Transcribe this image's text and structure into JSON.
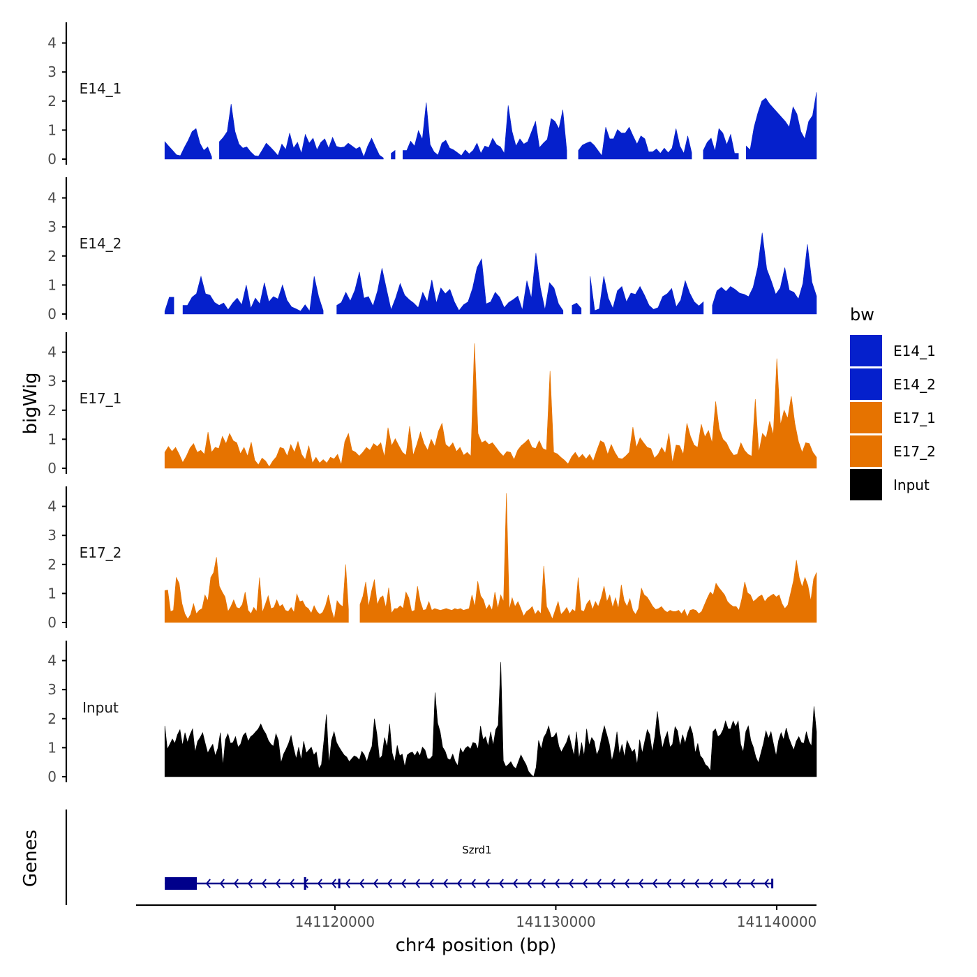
{
  "chart_data": {
    "type": "area",
    "chromosome": "chr4",
    "xlabel": "chr4 position (bp)",
    "ylabel": "bigWig",
    "xlim": [
      141111000,
      141141800
    ],
    "xticks": [
      141120000,
      141130000,
      141140000
    ],
    "xtick_labels": [
      "141120000",
      "141130000",
      "141140000"
    ],
    "ylim": [
      0,
      4.6
    ],
    "yticks": [
      0,
      1,
      2,
      3,
      4
    ],
    "ytick_labels": [
      "0",
      "1",
      "2",
      "3",
      "4"
    ],
    "legend": {
      "title": "bw",
      "position": "right",
      "entries": [
        {
          "label": "E14_1",
          "color": "#0520CC"
        },
        {
          "label": "E14_2",
          "color": "#0520CC"
        },
        {
          "label": "E17_1",
          "color": "#E67300"
        },
        {
          "label": "E17_2",
          "color": "#E67300"
        },
        {
          "label": "Input",
          "color": "#000000"
        }
      ]
    },
    "genes_track_label": "Genes",
    "genes": [
      {
        "name": "Szrd1",
        "strand": "-",
        "start": 141112300,
        "end": 141139800,
        "color": "#00008B",
        "exons": [
          [
            141112300,
            141113750
          ],
          [
            141118600,
            141118700
          ],
          [
            141120150,
            141120200
          ],
          [
            141139750,
            141139800
          ]
        ],
        "thick_exons": [
          [
            141112300,
            141113750
          ],
          [
            141118600,
            141118700
          ]
        ]
      }
    ],
    "series": [
      {
        "name": "E14_1",
        "color": "#0520CC",
        "x_start": 141112300,
        "x_end": 141141800,
        "values": [
          0.6,
          0.45,
          0.3,
          0.15,
          0.12,
          0.4,
          0.65,
          0.95,
          1.05,
          0.55,
          0.3,
          0.42,
          0.08,
          null,
          0.6,
          0.75,
          0.95,
          1.9,
          0.95,
          0.52,
          0.38,
          0.42,
          0.25,
          0.12,
          0.1,
          0.32,
          0.55,
          0.42,
          0.28,
          0.12,
          0.52,
          0.33,
          0.9,
          0.38,
          0.58,
          0.2,
          0.85,
          0.55,
          0.72,
          0.32,
          0.58,
          0.7,
          0.38,
          0.75,
          0.44,
          0.4,
          0.42,
          0.55,
          0.45,
          0.35,
          0.42,
          0.08,
          0.45,
          0.72,
          0.42,
          0.14,
          0.04,
          null,
          0.2,
          0.3,
          null,
          0.3,
          0.3,
          0.62,
          0.45,
          0.98,
          0.68,
          1.95,
          0.5,
          0.25,
          0.14,
          0.55,
          0.65,
          0.38,
          0.32,
          0.22,
          0.12,
          0.32,
          0.18,
          0.3,
          0.55,
          0.2,
          0.45,
          0.4,
          0.72,
          0.5,
          0.42,
          0.2,
          1.85,
          0.95,
          0.45,
          0.7,
          0.52,
          0.6,
          0.95,
          1.3,
          0.4,
          0.55,
          0.68,
          1.4,
          1.3,
          1.05,
          1.7,
          0.3,
          null,
          null,
          0.3,
          0.48,
          0.55,
          0.6,
          0.48,
          0.3,
          0.12,
          1.1,
          0.7,
          0.7,
          1.02,
          0.9,
          0.9,
          1.1,
          0.8,
          0.52,
          0.8,
          0.7,
          0.25,
          0.25,
          0.35,
          0.2,
          0.38,
          0.22,
          0.38,
          1.05,
          0.45,
          0.2,
          0.8,
          0.22,
          null,
          null,
          0.3,
          0.58,
          0.72,
          0.28,
          1.05,
          0.9,
          0.5,
          0.85,
          0.2,
          0.2,
          null,
          0.45,
          0.32,
          1.1,
          1.6,
          2.0,
          2.1,
          1.9,
          1.75,
          1.6,
          1.45,
          1.3,
          1.1,
          1.8,
          1.55,
          0.95,
          0.7,
          1.3,
          1.5,
          2.3
        ]
      },
      {
        "name": "E14_2",
        "color": "#0520CC",
        "x_start": 141112300,
        "x_end": 141141800,
        "values": [
          0.1,
          0.58,
          0.58,
          null,
          0.3,
          0.3,
          0.58,
          0.7,
          1.3,
          0.7,
          0.65,
          0.4,
          0.3,
          0.38,
          0.15,
          0.38,
          0.55,
          0.32,
          1.0,
          0.2,
          0.55,
          0.35,
          1.08,
          0.42,
          0.6,
          0.52,
          1.0,
          0.48,
          0.25,
          0.18,
          0.1,
          0.32,
          0.1,
          1.3,
          0.6,
          0.12,
          null,
          null,
          0.3,
          0.4,
          0.75,
          0.45,
          0.82,
          1.45,
          0.55,
          0.6,
          0.28,
          0.8,
          1.58,
          0.85,
          0.15,
          0.55,
          1.05,
          0.65,
          0.5,
          0.38,
          0.22,
          0.75,
          0.42,
          1.18,
          0.38,
          0.9,
          0.7,
          0.85,
          0.42,
          0.12,
          0.32,
          0.42,
          0.88,
          1.6,
          1.9,
          0.35,
          0.42,
          0.75,
          0.58,
          0.22,
          0.4,
          0.5,
          0.62,
          0.14,
          1.15,
          0.55,
          2.1,
          0.9,
          0.15,
          1.08,
          0.9,
          0.35,
          0.12,
          null,
          0.3,
          0.38,
          0.2,
          null,
          1.3,
          0.12,
          0.18,
          1.3,
          0.55,
          0.2,
          0.8,
          0.95,
          0.42,
          0.72,
          0.68,
          0.95,
          0.65,
          0.3,
          0.16,
          0.22,
          0.6,
          0.7,
          0.88,
          0.25,
          0.48,
          1.15,
          0.72,
          0.42,
          0.28,
          0.42,
          null,
          0.3,
          0.8,
          0.92,
          0.78,
          0.95,
          0.85,
          0.72,
          0.68,
          0.6,
          0.92,
          1.6,
          2.8,
          1.55,
          1.15,
          0.68,
          0.9,
          1.6,
          0.82,
          0.75,
          0.52,
          1.05,
          2.4,
          1.1,
          0.62
        ]
      },
      {
        "name": "E17_1",
        "color": "#E67300",
        "x_start": 141112300,
        "x_end": 141141800,
        "values": [
          0.55,
          0.75,
          0.58,
          0.72,
          0.48,
          0.2,
          0.42,
          0.7,
          0.85,
          0.55,
          0.62,
          0.48,
          1.25,
          0.55,
          0.72,
          0.68,
          1.1,
          0.85,
          1.2,
          0.95,
          0.88,
          0.5,
          0.72,
          0.42,
          0.9,
          0.28,
          0.12,
          0.35,
          0.25,
          0.05,
          0.25,
          0.4,
          0.72,
          0.68,
          0.42,
          0.82,
          0.55,
          0.92,
          0.48,
          0.3,
          0.78,
          0.18,
          0.38,
          0.18,
          0.3,
          0.18,
          0.38,
          0.32,
          0.48,
          0.12,
          0.92,
          1.2,
          0.62,
          0.55,
          0.42,
          0.55,
          0.72,
          0.62,
          0.85,
          0.75,
          0.88,
          0.4,
          1.4,
          0.78,
          1.02,
          0.78,
          0.55,
          0.45,
          1.45,
          0.45,
          0.82,
          1.25,
          0.85,
          0.62,
          1.0,
          0.75,
          1.28,
          1.55,
          0.82,
          0.72,
          0.88,
          0.58,
          0.72,
          0.45,
          0.55,
          0.42,
          4.3,
          1.2,
          0.88,
          0.95,
          0.82,
          0.88,
          0.72,
          0.55,
          0.42,
          0.58,
          0.55,
          0.3,
          0.62,
          0.78,
          0.88,
          1.0,
          0.72,
          0.68,
          0.95,
          0.68,
          0.62,
          3.35,
          0.55,
          0.5,
          0.38,
          0.28,
          0.15,
          0.4,
          0.55,
          0.35,
          0.48,
          0.32,
          0.48,
          0.25,
          0.62,
          0.95,
          0.88,
          0.48,
          0.82,
          0.55,
          0.35,
          0.32,
          0.42,
          0.55,
          1.42,
          0.72,
          1.05,
          0.88,
          0.72,
          0.68,
          0.35,
          0.48,
          0.72,
          0.52,
          1.2,
          0.2,
          0.8,
          0.78,
          0.48,
          1.55,
          1.1,
          0.8,
          0.72,
          1.52,
          1.08,
          1.3,
          0.88,
          2.3,
          1.35,
          1.0,
          0.88,
          0.62,
          0.45,
          0.48,
          0.88,
          0.62,
          0.48,
          0.42,
          2.38,
          0.55,
          1.2,
          1.05,
          1.62,
          1.15,
          3.78,
          1.5,
          2.0,
          1.72,
          2.48,
          1.55,
          0.92,
          0.55,
          0.88,
          0.85,
          0.55,
          0.38
        ]
      },
      {
        "name": "E17_2",
        "color": "#E67300",
        "x_start": 141112300,
        "x_end": 141141800,
        "values": [
          1.1,
          1.12,
          0.38,
          0.42,
          1.55,
          1.35,
          0.65,
          0.3,
          0.12,
          0.28,
          0.65,
          0.3,
          0.42,
          0.48,
          0.95,
          0.75,
          1.55,
          1.72,
          2.25,
          1.25,
          1.05,
          0.88,
          0.38,
          0.55,
          0.78,
          0.52,
          0.48,
          0.62,
          1.05,
          0.42,
          0.3,
          0.52,
          0.38,
          1.55,
          0.35,
          0.62,
          0.92,
          0.48,
          0.52,
          0.78,
          0.55,
          0.62,
          0.42,
          0.38,
          0.52,
          0.35,
          0.98,
          0.72,
          0.75,
          0.55,
          0.48,
          0.32,
          0.58,
          0.38,
          0.28,
          0.35,
          0.58,
          0.95,
          0.45,
          0.12,
          0.75,
          0.62,
          0.55,
          2.0,
          0.45,
          null,
          null,
          null,
          0.62,
          0.9,
          1.4,
          0.55,
          1.08,
          1.48,
          0.62,
          0.85,
          0.92,
          0.52,
          1.2,
          0.32,
          0.48,
          0.48,
          0.58,
          0.48,
          1.05,
          0.85,
          0.38,
          0.42,
          1.25,
          0.72,
          0.42,
          0.45,
          0.72,
          0.42,
          0.48,
          0.45,
          0.42,
          0.45,
          0.48,
          0.45,
          0.42,
          0.48,
          0.45,
          0.48,
          0.42,
          0.45,
          0.48,
          0.95,
          0.55,
          1.42,
          0.92,
          0.78,
          0.45,
          0.62,
          0.42,
          1.05,
          0.48,
          0.95,
          0.72,
          4.45,
          0.45,
          0.85,
          0.55,
          0.72,
          0.48,
          0.22,
          0.38,
          0.45,
          0.55,
          0.28,
          0.42,
          0.3,
          1.95,
          0.55,
          0.35,
          0.12,
          0.42,
          0.72,
          0.28,
          0.38,
          0.52,
          0.3,
          0.45,
          0.38,
          1.55,
          0.42,
          0.38,
          0.65,
          0.78,
          0.45,
          0.72,
          0.55,
          0.85,
          1.25,
          0.72,
          0.95,
          0.52,
          0.85,
          0.48,
          1.3,
          0.75,
          0.55,
          0.82,
          0.42,
          0.28,
          0.48,
          1.18,
          0.95,
          0.88,
          0.72,
          0.55,
          0.45,
          0.48,
          0.55,
          0.42,
          0.35,
          0.42,
          0.38,
          0.38,
          0.42,
          0.3,
          0.45,
          0.2,
          0.42,
          0.45,
          0.42,
          0.3,
          0.38,
          0.62,
          0.85,
          1.05,
          0.95,
          1.35,
          1.2,
          1.08,
          0.95,
          0.72,
          0.62,
          0.55,
          0.55,
          0.42,
          0.82,
          1.4,
          1.02,
          0.95,
          0.72,
          0.8,
          0.9,
          0.95,
          0.72,
          0.85,
          0.92,
          0.98,
          0.88,
          0.95,
          0.65,
          0.48,
          0.6,
          1.02,
          1.45,
          2.15,
          1.55,
          1.22,
          1.55,
          1.28,
          0.75,
          1.5,
          1.72
        ]
      },
      {
        "name": "Input",
        "color": "#000000",
        "x_start": 141112300,
        "x_end": 141141800,
        "values": [
          1.75,
          0.95,
          1.12,
          1.3,
          1.15,
          1.45,
          1.62,
          1.08,
          1.52,
          1.18,
          1.45,
          1.65,
          0.85,
          1.22,
          1.35,
          1.52,
          1.15,
          0.82,
          0.98,
          1.12,
          0.72,
          0.98,
          1.52,
          0.38,
          1.28,
          1.48,
          1.15,
          1.18,
          1.38,
          1.02,
          1.12,
          1.42,
          1.52,
          1.22,
          1.38,
          1.45,
          1.55,
          1.65,
          1.82,
          1.62,
          1.48,
          1.25,
          1.12,
          1.05,
          1.48,
          1.25,
          0.48,
          0.78,
          0.95,
          1.15,
          1.42,
          0.98,
          0.62,
          1.02,
          0.58,
          1.22,
          0.82,
          0.92,
          1.02,
          0.75,
          0.85,
          0.28,
          0.42,
          1.25,
          2.15,
          0.45,
          1.25,
          1.55,
          1.18,
          1.02,
          0.88,
          0.75,
          0.68,
          0.52,
          0.62,
          0.72,
          0.68,
          0.58,
          0.88,
          0.75,
          0.52,
          0.82,
          1.05,
          2.0,
          1.45,
          0.62,
          0.72,
          1.35,
          1.02,
          1.82,
          0.82,
          0.52,
          1.08,
          0.72,
          0.78,
          0.35,
          0.75,
          0.82,
          0.85,
          0.72,
          0.88,
          0.72,
          1.02,
          0.92,
          0.62,
          0.62,
          0.72,
          2.9,
          1.85,
          1.55,
          1.02,
          0.88,
          0.62,
          0.58,
          0.78,
          0.52,
          0.38,
          0.98,
          0.82,
          0.98,
          1.05,
          0.95,
          1.18,
          1.15,
          0.95,
          1.75,
          1.28,
          1.38,
          1.05,
          1.55,
          1.08,
          1.62,
          1.78,
          3.95,
          0.55,
          0.35,
          0.42,
          0.52,
          0.35,
          0.28,
          0.52,
          0.75,
          0.58,
          0.42,
          0.18,
          0.08,
          0.0,
          0.32,
          1.25,
          0.95,
          1.35,
          1.5,
          1.75,
          1.35,
          1.38,
          1.52,
          1.05,
          0.85,
          1.02,
          1.18,
          1.45,
          1.08,
          0.72,
          1.55,
          0.62,
          1.18,
          0.72,
          1.65,
          1.08,
          1.35,
          1.22,
          0.75,
          0.95,
          1.38,
          1.75,
          1.45,
          1.12,
          0.55,
          0.92,
          1.55,
          0.78,
          1.12,
          0.68,
          1.25,
          1.05,
          0.85,
          0.95,
          0.42,
          1.28,
          0.82,
          1.22,
          1.62,
          1.45,
          0.85,
          1.38,
          2.25,
          1.52,
          0.98,
          1.32,
          1.55,
          1.02,
          1.12,
          1.72,
          1.58,
          1.05,
          1.45,
          1.15,
          1.52,
          1.75,
          1.48,
          0.82,
          1.15,
          0.72,
          0.62,
          0.42,
          0.35,
          0.2,
          1.55,
          1.65,
          1.38,
          1.45,
          1.62,
          1.92,
          1.65,
          1.65,
          1.92,
          1.72,
          1.92,
          1.12,
          0.85,
          1.55,
          1.75,
          1.25,
          1.02,
          0.68,
          0.48,
          0.82,
          1.15,
          1.58,
          1.32,
          1.55,
          1.12,
          0.72,
          1.25,
          1.52,
          1.28,
          1.68,
          1.35,
          1.12,
          0.92,
          1.22,
          1.38,
          1.18,
          1.15,
          1.55,
          1.22,
          1.05,
          2.42,
          1.55
        ]
      }
    ]
  }
}
